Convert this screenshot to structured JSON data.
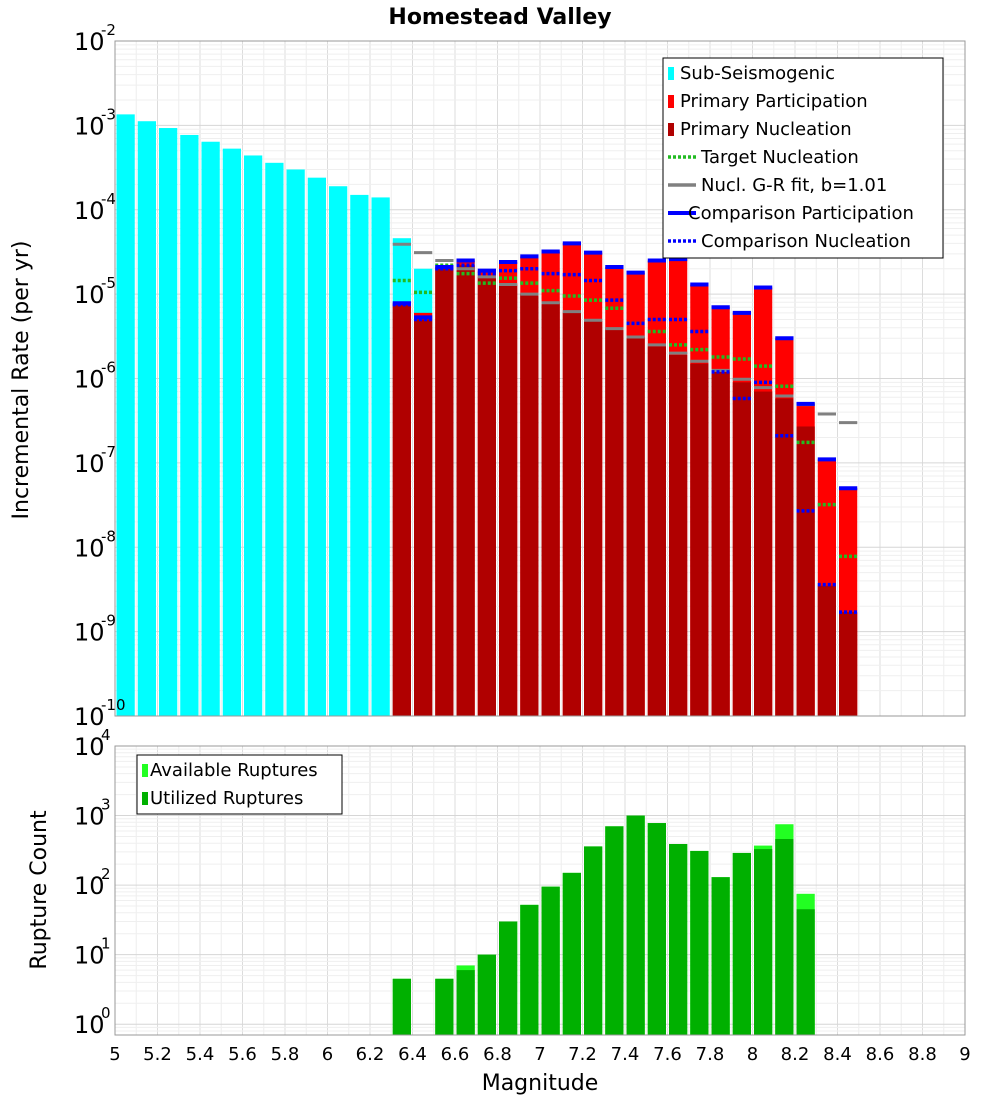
{
  "colors": {
    "sub_seismogenic": "#00ffff",
    "primary_participation": "#ff0000",
    "primary_nucleation": "#b00000",
    "target_nucleation": "#22bb22",
    "gr_fit": "#808080",
    "comparison": "#0000ff",
    "available": "#22ff22",
    "utilized": "#00b000"
  },
  "chart_data": [
    {
      "type": "bar",
      "title": "Homestead Valley",
      "xlabel": "",
      "ylabel": "Incremental Rate (per yr)",
      "xlim": [
        5,
        9
      ],
      "ylim": [
        1e-10,
        0.01
      ],
      "yscale": "log",
      "grid": true,
      "legend_position": "top-right",
      "x": [
        5.05,
        5.15,
        5.25,
        5.35,
        5.45,
        5.55,
        5.65,
        5.75,
        5.85,
        5.95,
        6.05,
        6.15,
        6.25,
        6.35,
        6.45,
        6.55,
        6.65,
        6.75,
        6.85,
        6.95,
        7.05,
        7.15,
        7.25,
        7.35,
        7.45,
        7.55,
        7.65,
        7.75,
        7.85,
        7.95,
        8.05,
        8.15,
        8.25,
        8.35,
        8.45
      ],
      "series": [
        {
          "name": "Sub-Seismogenic",
          "style": "bar",
          "values": [
            0.00135,
            0.00112,
            0.00093,
            0.00077,
            0.00064,
            0.00053,
            0.00044,
            0.00036,
            0.0003,
            0.00024,
            0.00019,
            0.00015,
            0.00014,
            4.6e-05,
            2e-05,
            null,
            null,
            null,
            null,
            null,
            null,
            null,
            null,
            null,
            null,
            null,
            null,
            null,
            null,
            null,
            null,
            null,
            null,
            null,
            null
          ]
        },
        {
          "name": "Primary Participation",
          "style": "bar",
          "values": [
            null,
            null,
            null,
            null,
            null,
            null,
            null,
            null,
            null,
            null,
            null,
            null,
            null,
            7.8e-06,
            6e-06,
            2.1e-05,
            2.5e-05,
            1.9e-05,
            2.4e-05,
            2.8e-05,
            3.2e-05,
            4e-05,
            3.1e-05,
            2.1e-05,
            1.8e-05,
            2.5e-05,
            2.6e-05,
            1.3e-05,
            7e-06,
            6e-06,
            1.2e-05,
            3e-06,
            5e-07,
            1.1e-07,
            5e-08
          ]
        },
        {
          "name": "Primary Nucleation",
          "style": "bar",
          "values": [
            null,
            null,
            null,
            null,
            null,
            null,
            null,
            null,
            null,
            null,
            null,
            null,
            null,
            7.5e-06,
            5e-06,
            2e-05,
            2.2e-05,
            1.6e-05,
            1.3e-05,
            1e-05,
            7.8e-06,
            6e-06,
            4.8e-06,
            3.9e-06,
            3.1e-06,
            2.4e-06,
            1.9e-06,
            1.5e-06,
            1.2e-06,
            9e-07,
            7e-07,
            5.8e-07,
            2.7e-07,
            3.5e-09,
            1.7e-09
          ]
        },
        {
          "name": "Target Nucleation",
          "style": "dotted-segment",
          "values": [
            null,
            null,
            null,
            null,
            null,
            null,
            null,
            null,
            null,
            null,
            null,
            null,
            null,
            1.45e-05,
            1.05e-05,
            2.2e-05,
            1.75e-05,
            1.35e-05,
            1.55e-05,
            1.35e-05,
            1.1e-05,
            9.5e-06,
            8.5e-06,
            6.8e-06,
            4.5e-06,
            3.6e-06,
            2.5e-06,
            2.2e-06,
            1.8e-06,
            1.7e-06,
            1.4e-06,
            8.1e-07,
            1.75e-07,
            3.2e-08,
            7.8e-09
          ]
        },
        {
          "name": "Nucl. G-R fit, b=1.01",
          "style": "dash-segment",
          "values": [
            null,
            null,
            null,
            null,
            null,
            null,
            null,
            null,
            null,
            null,
            null,
            null,
            null,
            3.9e-05,
            3.1e-05,
            2.5e-05,
            2e-05,
            1.6e-05,
            1.3e-05,
            1e-05,
            7.9e-06,
            6.2e-06,
            4.9e-06,
            3.9e-06,
            3.1e-06,
            2.5e-06,
            2e-06,
            1.6e-06,
            1.25e-06,
            9.8e-07,
            7.8e-07,
            6.2e-07,
            4.9e-07,
            3.8e-07,
            3e-07
          ]
        },
        {
          "name": "Comparison Participation",
          "style": "solid-segment",
          "values": [
            null,
            null,
            null,
            null,
            null,
            null,
            null,
            null,
            null,
            null,
            null,
            null,
            null,
            7.8e-06,
            5.3e-06,
            2.1e-05,
            2.5e-05,
            1.9e-05,
            2.4e-05,
            2.8e-05,
            3.2e-05,
            4e-05,
            3.1e-05,
            2.1e-05,
            1.8e-05,
            2.5e-05,
            2.6e-05,
            1.3e-05,
            7e-06,
            6e-06,
            1.2e-05,
            3e-06,
            5e-07,
            1.1e-07,
            5e-08
          ]
        },
        {
          "name": "Comparison Nucleation",
          "style": "dotted-segment",
          "values": [
            null,
            null,
            null,
            null,
            null,
            null,
            null,
            null,
            null,
            null,
            null,
            null,
            null,
            7.5e-06,
            5e-06,
            2e-05,
            2.2e-05,
            1.75e-05,
            1.9e-05,
            2e-05,
            1.75e-05,
            1.7e-05,
            1.45e-05,
            8.5e-06,
            4.5e-06,
            5e-06,
            5e-06,
            3.6e-06,
            1.2e-06,
            5.8e-07,
            9e-07,
            2.1e-07,
            2.7e-08,
            3.6e-09,
            1.7e-09
          ]
        }
      ],
      "yticks": [
        {
          "base": "10",
          "exp": "-10"
        },
        {
          "base": "10",
          "exp": "-9"
        },
        {
          "base": "10",
          "exp": "-8"
        },
        {
          "base": "10",
          "exp": "-7"
        },
        {
          "base": "10",
          "exp": "-6"
        },
        {
          "base": "10",
          "exp": "-5"
        },
        {
          "base": "10",
          "exp": "-4"
        },
        {
          "base": "10",
          "exp": "-3"
        },
        {
          "base": "10",
          "exp": "-2"
        }
      ]
    },
    {
      "type": "bar",
      "title": "",
      "xlabel": "Magnitude",
      "ylabel": "Rupture Count",
      "xlim": [
        5,
        9
      ],
      "ylim": [
        0.7,
        10000
      ],
      "yscale": "log",
      "grid": true,
      "legend_position": "top-left",
      "x": [
        6.35,
        6.45,
        6.55,
        6.65,
        6.75,
        6.85,
        6.95,
        7.05,
        7.15,
        7.25,
        7.35,
        7.45,
        7.55,
        7.65,
        7.75,
        7.85,
        7.95,
        8.05,
        8.15,
        8.25,
        8.35
      ],
      "series": [
        {
          "name": "Available Ruptures",
          "values": [
            4.5,
            null,
            4.5,
            7,
            10,
            30,
            52,
            95,
            150,
            360,
            700,
            1000,
            780,
            390,
            310,
            130,
            290,
            370,
            750,
            75,
            null
          ]
        },
        {
          "name": "Utilized Ruptures",
          "values": [
            4.5,
            null,
            4.5,
            6,
            10,
            30,
            52,
            95,
            150,
            360,
            700,
            1000,
            780,
            390,
            310,
            130,
            290,
            330,
            460,
            45,
            null
          ]
        }
      ],
      "yticks": [
        {
          "base": "10",
          "exp": "0"
        },
        {
          "base": "10",
          "exp": "1"
        },
        {
          "base": "10",
          "exp": "2"
        },
        {
          "base": "10",
          "exp": "3"
        },
        {
          "base": "10",
          "exp": "4"
        }
      ],
      "xticks": [
        "5",
        "5.2",
        "5.4",
        "5.6",
        "5.8",
        "6",
        "6.2",
        "6.4",
        "6.6",
        "6.8",
        "7",
        "7.2",
        "7.4",
        "7.6",
        "7.8",
        "8",
        "8.2",
        "8.4",
        "8.6",
        "8.8",
        "9"
      ]
    }
  ]
}
